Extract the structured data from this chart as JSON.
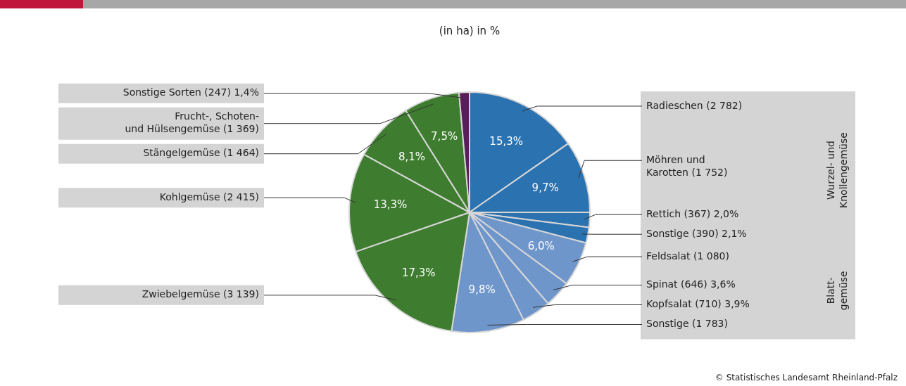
{
  "chart_data": {
    "type": "pie",
    "title": "(in ha) in %",
    "categories": [
      "Radieschen (2 782)",
      "Möhren und\nKarotten (1 752)",
      "Rettich (367) 2,0%",
      "Sonstige (390) 2,1%",
      "Feldsalat (1 080)",
      "Spinat (646) 3,6%",
      "Kopfsalat (710) 3,9%",
      "Sonstige (1 783)",
      "Zwiebelgemüse (3 139)",
      "Kohlgemüse (2 415)",
      "Stängelgemüse (1 464)",
      "Frucht-, Schoten-\nund Hülsengemüse (1 369)",
      "Sonstige Sorten (247) 1,4%"
    ],
    "values": [
      15.3,
      9.7,
      2.0,
      2.1,
      6.0,
      3.6,
      3.9,
      9.8,
      17.3,
      13.3,
      8.1,
      7.5,
      1.4
    ],
    "value_labels": [
      "15,3%",
      "9,7%",
      null,
      null,
      "6,0%",
      null,
      null,
      "9,8%",
      "17,3%",
      "13,3%",
      "8,1%",
      "7,5%",
      null
    ],
    "colors": [
      "#2b72b1",
      "#2b72b1",
      "#2b72b1",
      "#2b72b1",
      "#6f96cb",
      "#6f96cb",
      "#6f96cb",
      "#6f96cb",
      "#3e7d2f",
      "#3e7d2f",
      "#3e7d2f",
      "#3e7d2f",
      "#5b1d57"
    ],
    "annotations": [
      "Wurzel- und\nKnollengemüse",
      "Blatt-\ngemüse",
      "© Statistisches Landesamt Rheinland-Pfalz"
    ]
  }
}
